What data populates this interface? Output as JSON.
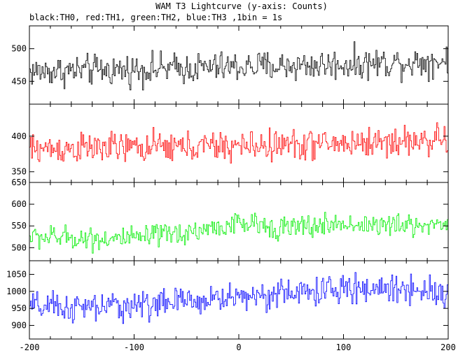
{
  "chart_data": {
    "type": "line",
    "title": "WAM T3 Lightcurve (y-axis: Counts)",
    "subtitle": "black:TH0, red:TH1, green:TH2, blue:TH3 ,1bin = 1s",
    "xlim": [
      -200,
      200
    ],
    "x_ticks": [
      -200,
      -100,
      0,
      100,
      200
    ],
    "x_tick_labels": [
      "-200",
      "-100",
      "0",
      "100",
      "200"
    ],
    "panels": [
      {
        "series_name": "TH0",
        "color": "#000000",
        "ylim": [
          415,
          535
        ],
        "y_ticks": [
          450,
          500
        ],
        "y_tick_labels": [
          "450",
          "500"
        ],
        "trend": {
          "x": [
            -200,
            -100,
            0,
            100,
            200
          ],
          "y": [
            465,
            468,
            472,
            476,
            482
          ]
        },
        "noise_amplitude": 22
      },
      {
        "series_name": "TH1",
        "color": "#ff0000",
        "ylim": [
          335,
          445
        ],
        "y_ticks": [
          350,
          400
        ],
        "y_tick_labels": [
          "350",
          "400"
        ],
        "trend": {
          "x": [
            -200,
            -100,
            0,
            100,
            200
          ],
          "y": [
            382,
            384,
            386,
            390,
            395
          ]
        },
        "noise_amplitude": 20
      },
      {
        "series_name": "TH2",
        "color": "#00ee00",
        "ylim": [
          470,
          650
        ],
        "y_ticks": [
          500,
          550,
          600,
          650
        ],
        "y_tick_labels": [
          "500",
          "550",
          "600",
          "650"
        ],
        "trend": {
          "x": [
            -200,
            -150,
            -100,
            -50,
            0,
            50,
            100,
            150,
            200
          ],
          "y": [
            525,
            522,
            520,
            535,
            555,
            545,
            555,
            550,
            555
          ]
        },
        "noise_amplitude": 25
      },
      {
        "series_name": "TH3",
        "color": "#0000ff",
        "ylim": [
          860,
          1090
        ],
        "y_ticks": [
          900,
          950,
          1000,
          1050
        ],
        "y_tick_labels": [
          "900",
          "950",
          "1000",
          "1050"
        ],
        "trend": {
          "x": [
            -200,
            -150,
            -100,
            -50,
            0,
            50,
            100,
            150,
            200
          ],
          "y": [
            955,
            950,
            960,
            970,
            985,
            995,
            1005,
            1010,
            1000
          ]
        },
        "noise_amplitude": 40
      }
    ]
  }
}
